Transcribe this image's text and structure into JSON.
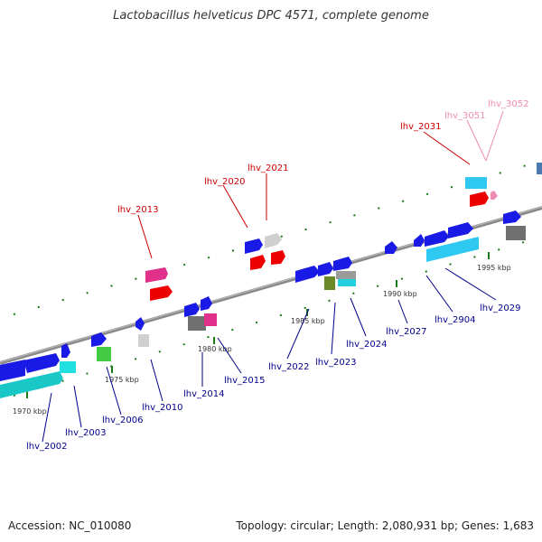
{
  "title": "Lactobacillus helveticus DPC 4571, complete genome",
  "accession": "Accession: NC_010080",
  "topology": "Topology: circular; Length: 2,080,931 bp; Genes: 1,683",
  "scale_labels": [
    "1970 kbp",
    "1975 kbp",
    "1980 kbp",
    "1985 kbp",
    "1990 kbp",
    "1995 kbp"
  ],
  "genes_top": [
    {
      "name": "lhv_2013",
      "color": "#cc0000"
    },
    {
      "name": "lhv_2020",
      "color": "#cc0000"
    },
    {
      "name": "lhv_2021",
      "color": "#cc0000"
    },
    {
      "name": "lhv_2031",
      "color": "#cc0000"
    },
    {
      "name": "lhv_3051",
      "color": "#f08cb4"
    },
    {
      "name": "lhv_3052",
      "color": "#f08cb4"
    }
  ],
  "genes_bottom": [
    {
      "name": "lhv_2002",
      "color": "#00008b"
    },
    {
      "name": "lhv_2003",
      "color": "#00008b"
    },
    {
      "name": "lhv_2006",
      "color": "#00008b"
    },
    {
      "name": "lhv_2010",
      "color": "#00008b"
    },
    {
      "name": "lhv_2014",
      "color": "#00008b"
    },
    {
      "name": "lhv_2015",
      "color": "#00008b"
    },
    {
      "name": "lhv_2022",
      "color": "#00008b"
    },
    {
      "name": "lhv_2023",
      "color": "#00008b"
    },
    {
      "name": "lhv_2024",
      "color": "#00008b"
    },
    {
      "name": "lhv_2027",
      "color": "#00008b"
    },
    {
      "name": "lhv_2904",
      "color": "#00008b"
    },
    {
      "name": "lhv_2029",
      "color": "#00008b"
    }
  ]
}
